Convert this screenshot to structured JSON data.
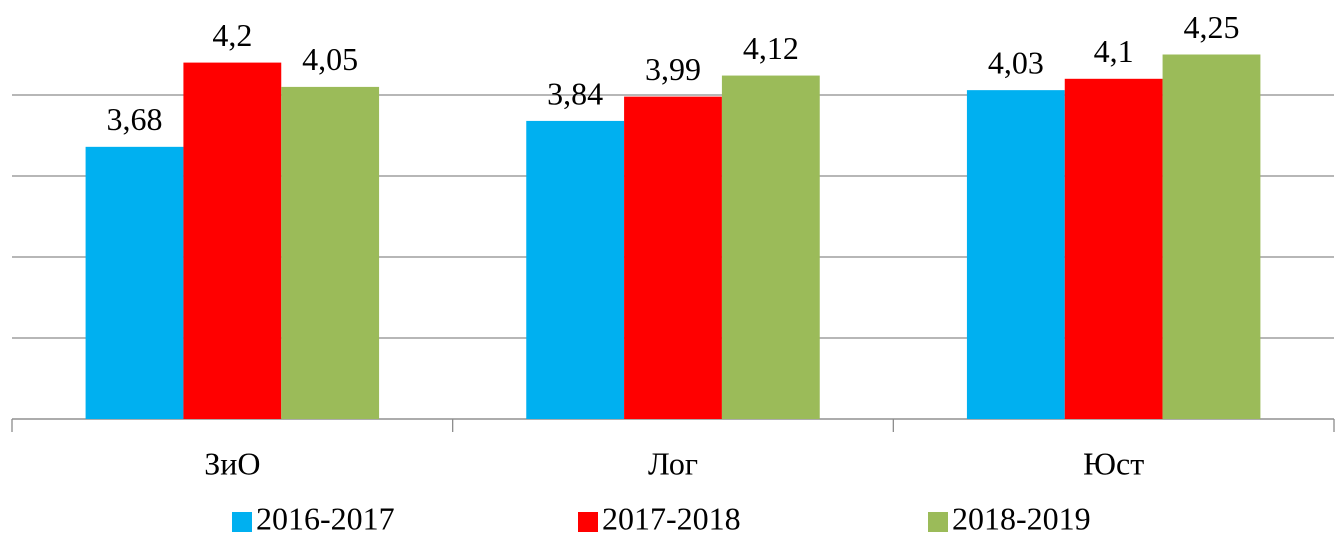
{
  "chart_data": {
    "type": "bar",
    "categories": [
      "ЗиО",
      "Лог",
      "Юст"
    ],
    "series": [
      {
        "name": "2016-2017",
        "color": "#00b0f0",
        "values": [
          3.68,
          3.84,
          4.03
        ],
        "value_labels": [
          "3,68",
          "3,84",
          "4,03"
        ]
      },
      {
        "name": "2017-2018",
        "color": "#ff0000",
        "values": [
          4.2,
          3.99,
          4.1
        ],
        "value_labels": [
          "4,2",
          "3,99",
          "4,1"
        ]
      },
      {
        "name": "2018-2019",
        "color": "#9bbb59",
        "values": [
          4.05,
          4.12,
          4.25
        ],
        "value_labels": [
          "4,05",
          "4,12",
          "4,25"
        ]
      }
    ],
    "ylim": [
      2,
      4.5
    ],
    "yticks": [
      2,
      2.5,
      3,
      3.5,
      4
    ],
    "grid": true,
    "ytick_labels": false,
    "legend": "bottom"
  }
}
